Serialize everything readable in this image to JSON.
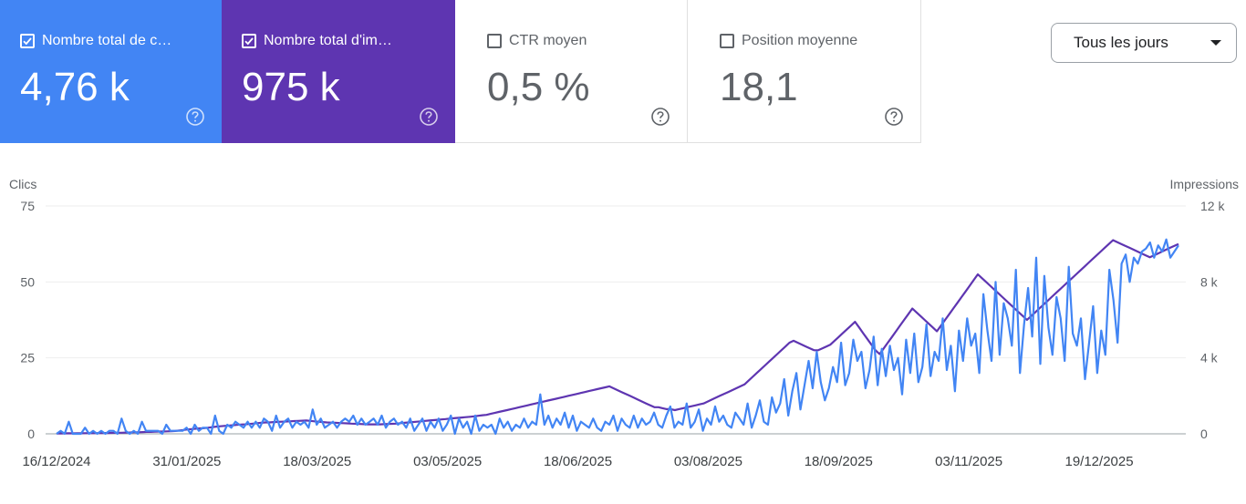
{
  "cards": [
    {
      "label": "Nombre total de c…",
      "value": "4,76 k",
      "checked": true,
      "color": "#4285f4"
    },
    {
      "label": "Nombre total d'im…",
      "value": "975 k",
      "checked": true,
      "color": "#5e35b1"
    },
    {
      "label": "CTR moyen",
      "value": "0,5 %",
      "checked": false,
      "color": "#ffffff"
    },
    {
      "label": "Position moyenne",
      "value": "18,1",
      "checked": false,
      "color": "#ffffff"
    }
  ],
  "dropdown": {
    "selected": "Tous les jours"
  },
  "chart_data": {
    "type": "line",
    "ylabel_left": "Clics",
    "ylabel_right": "Impressions",
    "ylim_left": [
      0,
      75
    ],
    "ylim_right": [
      0,
      12000
    ],
    "yticks_left": [
      "0",
      "25",
      "50",
      "75"
    ],
    "yticks_right": [
      "0",
      "4 k",
      "8 k",
      "12 k"
    ],
    "x_range": [
      "2024-12-16",
      "2026-01-16"
    ],
    "xticks": [
      "16/12/2024",
      "31/01/2025",
      "18/03/2025",
      "03/05/2025",
      "18/06/2025",
      "03/08/2025",
      "18/09/2025",
      "03/11/2025",
      "19/12/2025"
    ],
    "grid": true,
    "series": [
      {
        "name": "Nombre total de clics",
        "axis": "left",
        "color": "#4285f4",
        "values": [
          0,
          1,
          0,
          4,
          0,
          0,
          0,
          2,
          0,
          1,
          0,
          1,
          0,
          1,
          1,
          0,
          5,
          1,
          0,
          1,
          0,
          4,
          1,
          1,
          1,
          1,
          0,
          3,
          1,
          1,
          1,
          1,
          2,
          0,
          3,
          1,
          2,
          2,
          0,
          6,
          1,
          0,
          3,
          2,
          4,
          3,
          2,
          4,
          2,
          4,
          2,
          5,
          4,
          1,
          6,
          2,
          4,
          5,
          2,
          4,
          3,
          4,
          2,
          8,
          3,
          5,
          2,
          3,
          4,
          2,
          4,
          5,
          4,
          6,
          3,
          5,
          3,
          4,
          5,
          3,
          6,
          2,
          4,
          5,
          3,
          4,
          2,
          5,
          1,
          3,
          5,
          1,
          4,
          2,
          5,
          1,
          3,
          6,
          0,
          5,
          2,
          4,
          0,
          6,
          1,
          3,
          2,
          3,
          0,
          5,
          2,
          4,
          1,
          3,
          2,
          5,
          2,
          4,
          3,
          13,
          3,
          6,
          2,
          5,
          3,
          7,
          2,
          6,
          1,
          4,
          3,
          2,
          5,
          2,
          1,
          4,
          3,
          6,
          1,
          5,
          3,
          2,
          6,
          2,
          5,
          3,
          4,
          7,
          3,
          2,
          6,
          9,
          2,
          4,
          3,
          10,
          2,
          4,
          8,
          1,
          5,
          3,
          9,
          4,
          6,
          3,
          2,
          7,
          5,
          3,
          10,
          2,
          6,
          11,
          4,
          3,
          12,
          7,
          10,
          18,
          6,
          14,
          20,
          8,
          16,
          24,
          15,
          27,
          17,
          11,
          15,
          22,
          17,
          30,
          16,
          20,
          31,
          24,
          27,
          15,
          21,
          32,
          16,
          28,
          19,
          29,
          21,
          25,
          13,
          31,
          20,
          33,
          17,
          22,
          36,
          19,
          27,
          24,
          38,
          21,
          29,
          14,
          34,
          24,
          38,
          29,
          33,
          20,
          46,
          34,
          24,
          50,
          26,
          43,
          38,
          29,
          54,
          20,
          36,
          48,
          32,
          58,
          23,
          52,
          35,
          26,
          45,
          38,
          24,
          55,
          33,
          29,
          38,
          18,
          30,
          42,
          20,
          34,
          26,
          54,
          44,
          30,
          56,
          59,
          50,
          58,
          56,
          60,
          61,
          63,
          58,
          62,
          60,
          64,
          58,
          60,
          62
        ]
      },
      {
        "name": "Nombre total d'impressions",
        "axis": "right",
        "color": "#5e35b1",
        "values": [
          20,
          20,
          25,
          30,
          25,
          30,
          30,
          35,
          40,
          35,
          40,
          40,
          45,
          50,
          55,
          60,
          60,
          65,
          70,
          80,
          80,
          90,
          100,
          100,
          110,
          120,
          120,
          130,
          140,
          150,
          180,
          200,
          230,
          250,
          270,
          290,
          300,
          320,
          350,
          380,
          400,
          420,
          430,
          450,
          470,
          490,
          500,
          520,
          540,
          560,
          580,
          600,
          600,
          620,
          630,
          640,
          650,
          660,
          670,
          680,
          690,
          700,
          680,
          660,
          640,
          620,
          600,
          590,
          580,
          570,
          560,
          550,
          540,
          530,
          520,
          510,
          500,
          500,
          500,
          500,
          510,
          520,
          530,
          540,
          560,
          580,
          600,
          620,
          640,
          660,
          680,
          700,
          720,
          740,
          760,
          780,
          800,
          820,
          840,
          860,
          880,
          900,
          920,
          950,
          980,
          1000,
          1050,
          1100,
          1150,
          1200,
          1250,
          1300,
          1350,
          1400,
          1450,
          1500,
          1550,
          1600,
          1650,
          1700,
          1750,
          1800,
          1850,
          1900,
          1950,
          2000,
          2050,
          2100,
          2150,
          2200,
          2250,
          2300,
          2350,
          2400,
          2450,
          2500,
          2400,
          2300,
          2200,
          2100,
          2000,
          1900,
          1800,
          1700,
          1600,
          1500,
          1400,
          1400,
          1350,
          1300,
          1300,
          1250,
          1300,
          1350,
          1400,
          1450,
          1500,
          1550,
          1600,
          1700,
          1800,
          1900,
          2000,
          2100,
          2200,
          2300,
          2400,
          2500,
          2600,
          2800,
          3000,
          3200,
          3400,
          3600,
          3800,
          4000,
          4200,
          4400,
          4600,
          4800,
          4900,
          4800,
          4700,
          4600,
          4500,
          4400,
          4400,
          4500,
          4600,
          4700,
          4900,
          5100,
          5300,
          5500,
          5700,
          5900,
          5600,
          5300,
          5000,
          4700,
          4400,
          4200,
          4500,
          4800,
          5100,
          5400,
          5700,
          6000,
          6300,
          6600,
          6400,
          6200,
          6000,
          5800,
          5600,
          5400,
          5700,
          6000,
          6300,
          6600,
          6900,
          7200,
          7500,
          7800,
          8100,
          8400,
          8200,
          8000,
          7800,
          7600,
          7400,
          7200,
          7000,
          6800,
          6600,
          6400,
          6200,
          6000,
          6200,
          6400,
          6600,
          6800,
          7000,
          7200,
          7400,
          7600,
          7800,
          8000,
          8200,
          8400,
          8600,
          8800,
          9000,
          9200,
          9400,
          9600,
          9800,
          10000,
          10200,
          10100,
          10000,
          9900,
          9800,
          9700,
          9600,
          9500,
          9400,
          9300,
          9400,
          9500,
          9600,
          9700,
          9800,
          9900,
          10000
        ]
      }
    ]
  }
}
